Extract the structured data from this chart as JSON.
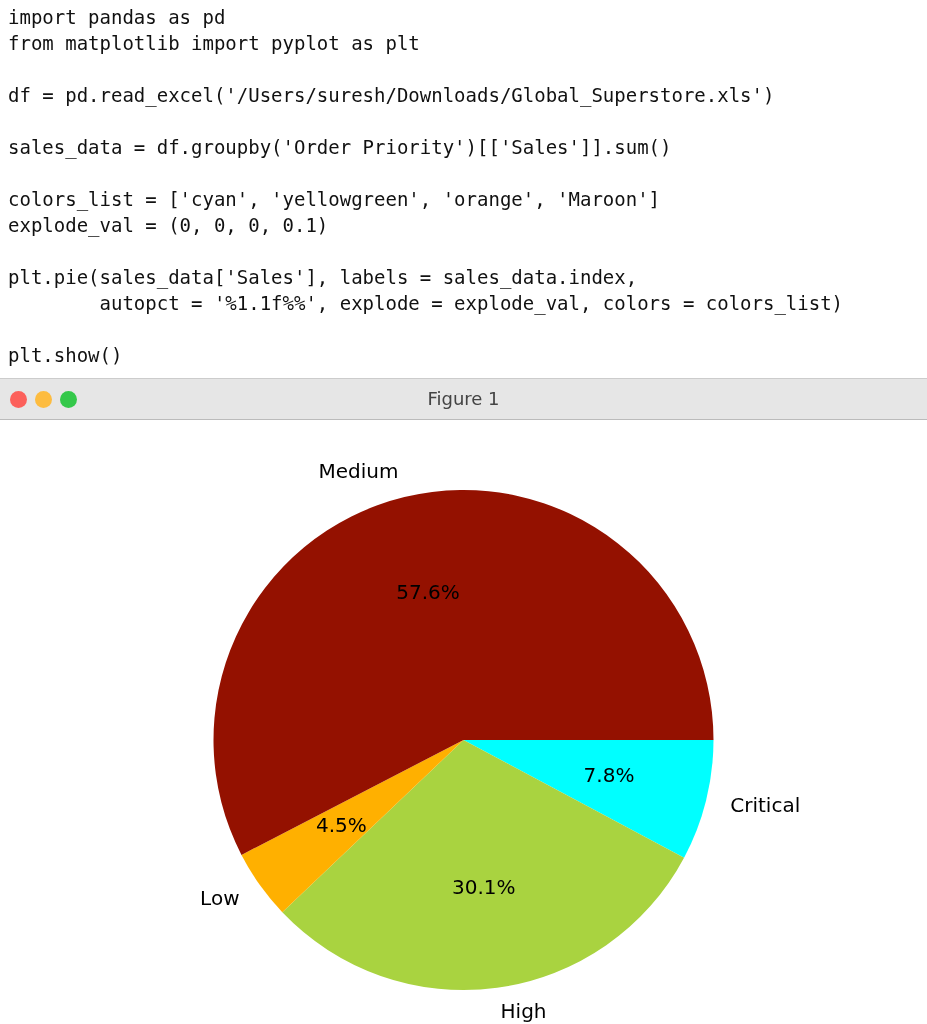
{
  "chart_data": {
    "type": "pie",
    "title": "Figure 1",
    "categories": [
      "Critical",
      "High",
      "Low",
      "Medium"
    ],
    "values": [
      7.8,
      30.1,
      4.5,
      57.6
    ],
    "colors": [
      "#00ffff",
      "#a9d340",
      "#ffb000",
      "#941100"
    ],
    "value_labels": [
      "7.8%",
      "30.1%",
      "4.5%",
      "57.6%"
    ],
    "annotations": [
      "import pandas as pd",
      "from matplotlib import pyplot as plt",
      "df = pd.read_excel('/Users/suresh/Downloads/Global_Superstore.xls')",
      "sales_data = df.groupby('Order Priority')[['Sales']].sum()",
      "colors_list = ['cyan', 'yellowgreen', 'orange', 'Maroon']",
      "explode_val = (0, 0, 0, 0.1)",
      "plt.pie(sales_data['Sales'], labels = sales_data.index,",
      "        autopct = '%1.1f%%', explode = explode_val, colors = colors_list)",
      "plt.show()"
    ]
  }
}
